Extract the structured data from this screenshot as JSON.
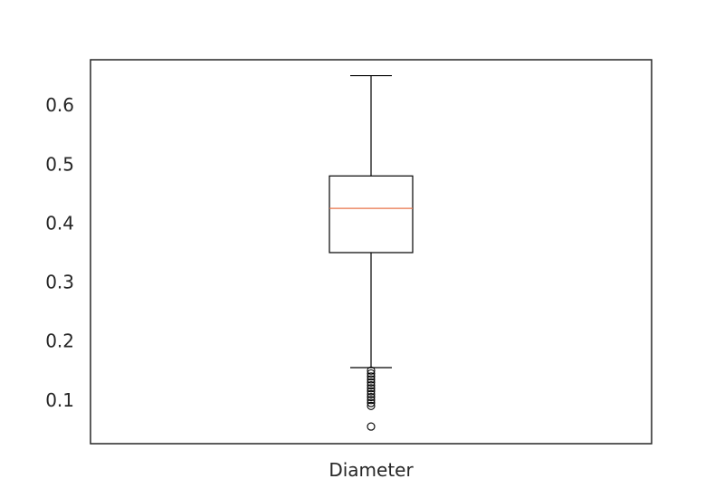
{
  "chart_data": {
    "type": "box",
    "title": "",
    "xlabel": "",
    "ylabel": "",
    "categories": [
      "Diameter"
    ],
    "ylim": [
      0.026,
      0.677
    ],
    "yticks": [
      0.1,
      0.2,
      0.3,
      0.4,
      0.5,
      0.6
    ],
    "grid": false,
    "boxes": [
      {
        "category": "Diameter",
        "whisker_low": 0.155,
        "q1": 0.35,
        "median": 0.425,
        "q3": 0.48,
        "whisker_high": 0.65,
        "outliers": [
          0.15,
          0.145,
          0.14,
          0.135,
          0.13,
          0.125,
          0.12,
          0.115,
          0.11,
          0.105,
          0.1,
          0.095,
          0.09,
          0.055
        ]
      }
    ],
    "colors": {
      "box": "#000000",
      "median": "#e8734a",
      "axes": "#262626"
    }
  }
}
